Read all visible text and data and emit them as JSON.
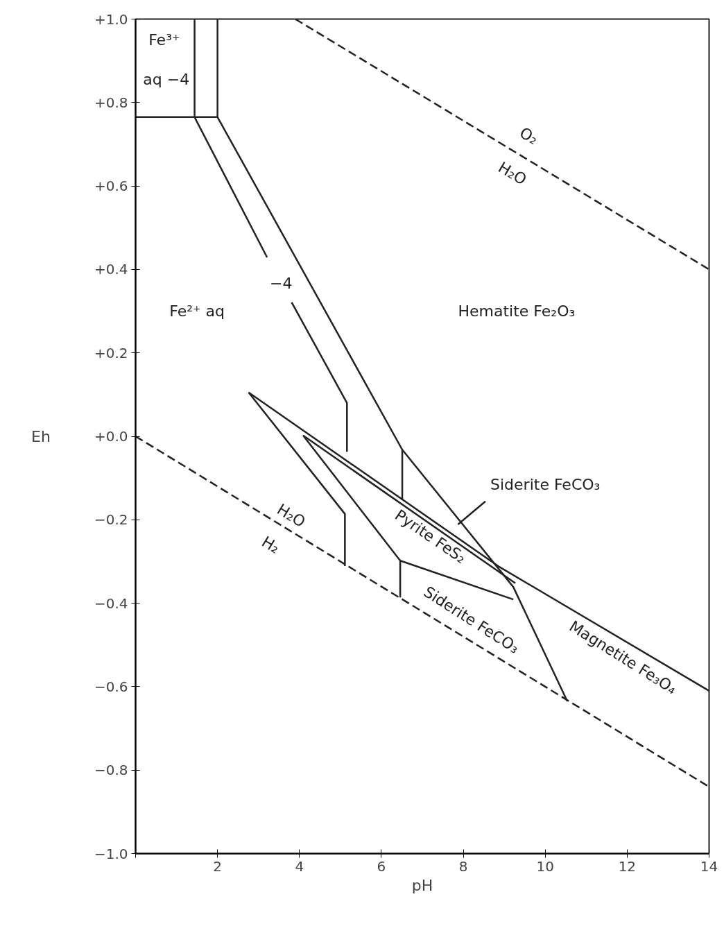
{
  "chart_data": {
    "type": "line",
    "xlabel": "pH",
    "ylabel": "Eh",
    "xlim": [
      0,
      14
    ],
    "ylim": [
      -1.0,
      1.0
    ],
    "xticks": [
      {
        "value": 0,
        "label": null
      },
      2,
      4,
      6,
      8,
      10,
      12,
      14
    ],
    "yticks": [
      {
        "value": 1.0,
        "label": "+1.0"
      },
      {
        "value": 0.8,
        "label": "+0.8"
      },
      {
        "value": 0.6,
        "label": "+0.6"
      },
      {
        "value": 0.4,
        "label": "+0.4"
      },
      {
        "value": 0.2,
        "label": "+0.2"
      },
      {
        "value": 0.0,
        "label": "+0.0"
      },
      {
        "value": -0.2,
        "label": "−0.2"
      },
      {
        "value": -0.4,
        "label": "−0.4"
      },
      {
        "value": -0.6,
        "label": "−0.6"
      },
      {
        "value": -0.8,
        "label": "−0.8"
      },
      {
        "value": -1.0,
        "label": "−1.0"
      }
    ],
    "grid": false,
    "series": [
      {
        "color": "#222222",
        "line_style": "dashed",
        "x": [
          3.9,
          14
        ],
        "values": [
          1.0,
          0.4
        ]
      },
      {
        "color": "#222222",
        "line_style": "dashed",
        "x": [
          0,
          14
        ],
        "values": [
          0.0,
          -0.84
        ]
      },
      {
        "color": "#222222",
        "x": [
          0,
          2,
          2
        ],
        "values": [
          0.765,
          0.765,
          1.0
        ]
      },
      {
        "color": "#222222",
        "x": [
          1.44,
          1.44,
          3.21
        ],
        "values": [
          1.0,
          0.765,
          0.429
        ]
      },
      {
        "color": "#222222",
        "x": [
          3.81,
          5.16,
          5.16
        ],
        "values": [
          0.321,
          0.08,
          -0.037
        ]
      },
      {
        "color": "#222222",
        "x": [
          2,
          6.51,
          9.22,
          10.54
        ],
        "values": [
          0.765,
          -0.032,
          -0.361,
          -0.635
        ]
      },
      {
        "color": "#222222",
        "x": [
          6.51,
          6.51
        ],
        "values": [
          -0.032,
          -0.153
        ]
      },
      {
        "color": "#222222",
        "x": [
          2.76,
          8.85,
          14
        ],
        "values": [
          0.105,
          -0.311,
          -0.61
        ]
      },
      {
        "color": "#222222",
        "x": [
          2.76,
          5.11,
          5.11
        ],
        "values": [
          0.105,
          -0.186,
          -0.311
        ]
      },
      {
        "color": "#222222",
        "x": [
          4.09,
          9.27
        ],
        "values": [
          0.002,
          -0.352
        ]
      },
      {
        "color": "#222222",
        "x": [
          4.09,
          6.46,
          6.46
        ],
        "values": [
          0.002,
          -0.298,
          -0.386
        ]
      },
      {
        "color": "#222222",
        "x": [
          6.46,
          9.22
        ],
        "values": [
          -0.298,
          -0.391
        ]
      },
      {
        "color": "#222222",
        "x": [
          7.87,
          8.54
        ],
        "values": [
          -0.211,
          -0.156
        ]
      }
    ],
    "annotations": [
      "Fe³⁺",
      "aq −4",
      "−4",
      "Fe²⁺ aq",
      "Hematite Fe₂O₃",
      "O₂",
      "H₂O",
      "H₂O",
      "H₂",
      "Siderite FeCO₃",
      "Pyrite FeS₂",
      "Siderite FeCO₃",
      "Magnetite Fe₃O₄"
    ]
  }
}
